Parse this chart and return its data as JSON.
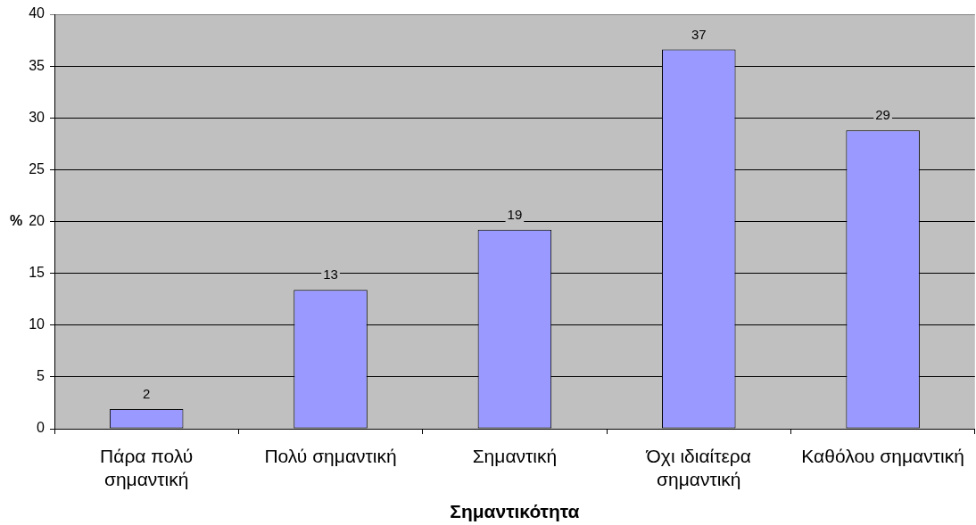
{
  "chart_data": {
    "type": "bar",
    "xlabel": "Σημαντικότητα",
    "ylabel": "%",
    "categories": [
      "Πάρα πολύ σημαντική",
      "Πολύ σημαντική",
      "Σημαντική",
      "Όχι ιδιαίτερα σημαντική",
      "Καθόλου σημαντική"
    ],
    "values": [
      1.9,
      13.4,
      19.2,
      36.6,
      28.8
    ],
    "value_labels": [
      "2",
      "13",
      "19",
      "37",
      "29"
    ],
    "color": "#9999ff",
    "ylim": [
      0,
      40
    ],
    "yticks": [
      0,
      5,
      10,
      15,
      20,
      25,
      30,
      35,
      40
    ],
    "grid": "y"
  }
}
